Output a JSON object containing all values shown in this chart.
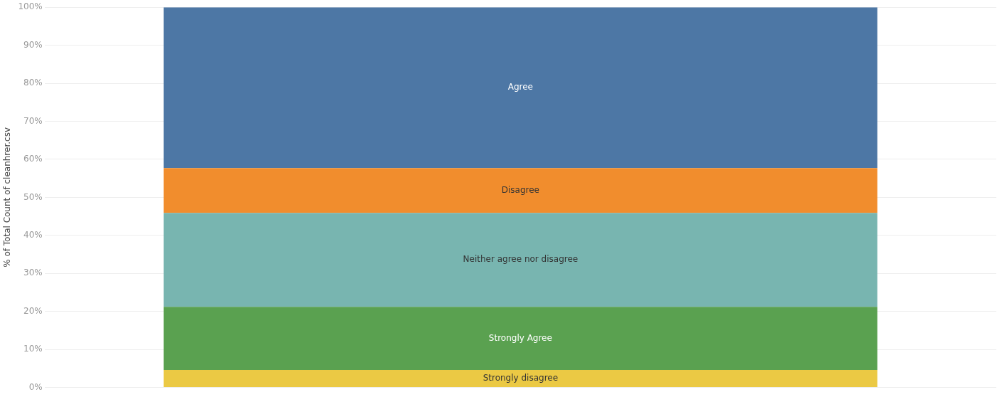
{
  "chart_data": {
    "type": "bar",
    "stacked": true,
    "ylabel": "% of Total Count of cleanhrer.csv",
    "categories": [
      null
    ],
    "series": [
      {
        "name": "Strongly disagree",
        "color": "#ebc944",
        "values": [
          4.6
        ]
      },
      {
        "name": "Strongly Agree",
        "color": "#5aa150",
        "values": [
          16.6
        ]
      },
      {
        "name": "Neither agree nor disagree",
        "color": "#78b5b0",
        "values": [
          24.7
        ]
      },
      {
        "name": "Disagree",
        "color": "#f18d2d",
        "values": [
          11.8
        ]
      },
      {
        "name": "Agree",
        "color": "#4d77a5",
        "values": [
          42.3
        ]
      }
    ],
    "ylim": [
      0,
      100
    ],
    "yticks": [
      {
        "value": 0,
        "label": "0%"
      },
      {
        "value": 10,
        "label": "10%"
      },
      {
        "value": 20,
        "label": "20%"
      },
      {
        "value": 30,
        "label": "30%"
      },
      {
        "value": 40,
        "label": "40%"
      },
      {
        "value": 50,
        "label": "50%"
      },
      {
        "value": 60,
        "label": "60%"
      },
      {
        "value": 70,
        "label": "70%"
      },
      {
        "value": 80,
        "label": "80%"
      },
      {
        "value": 90,
        "label": "90%"
      },
      {
        "value": 100,
        "label": "100%"
      }
    ],
    "grid": "y",
    "legend": false
  }
}
